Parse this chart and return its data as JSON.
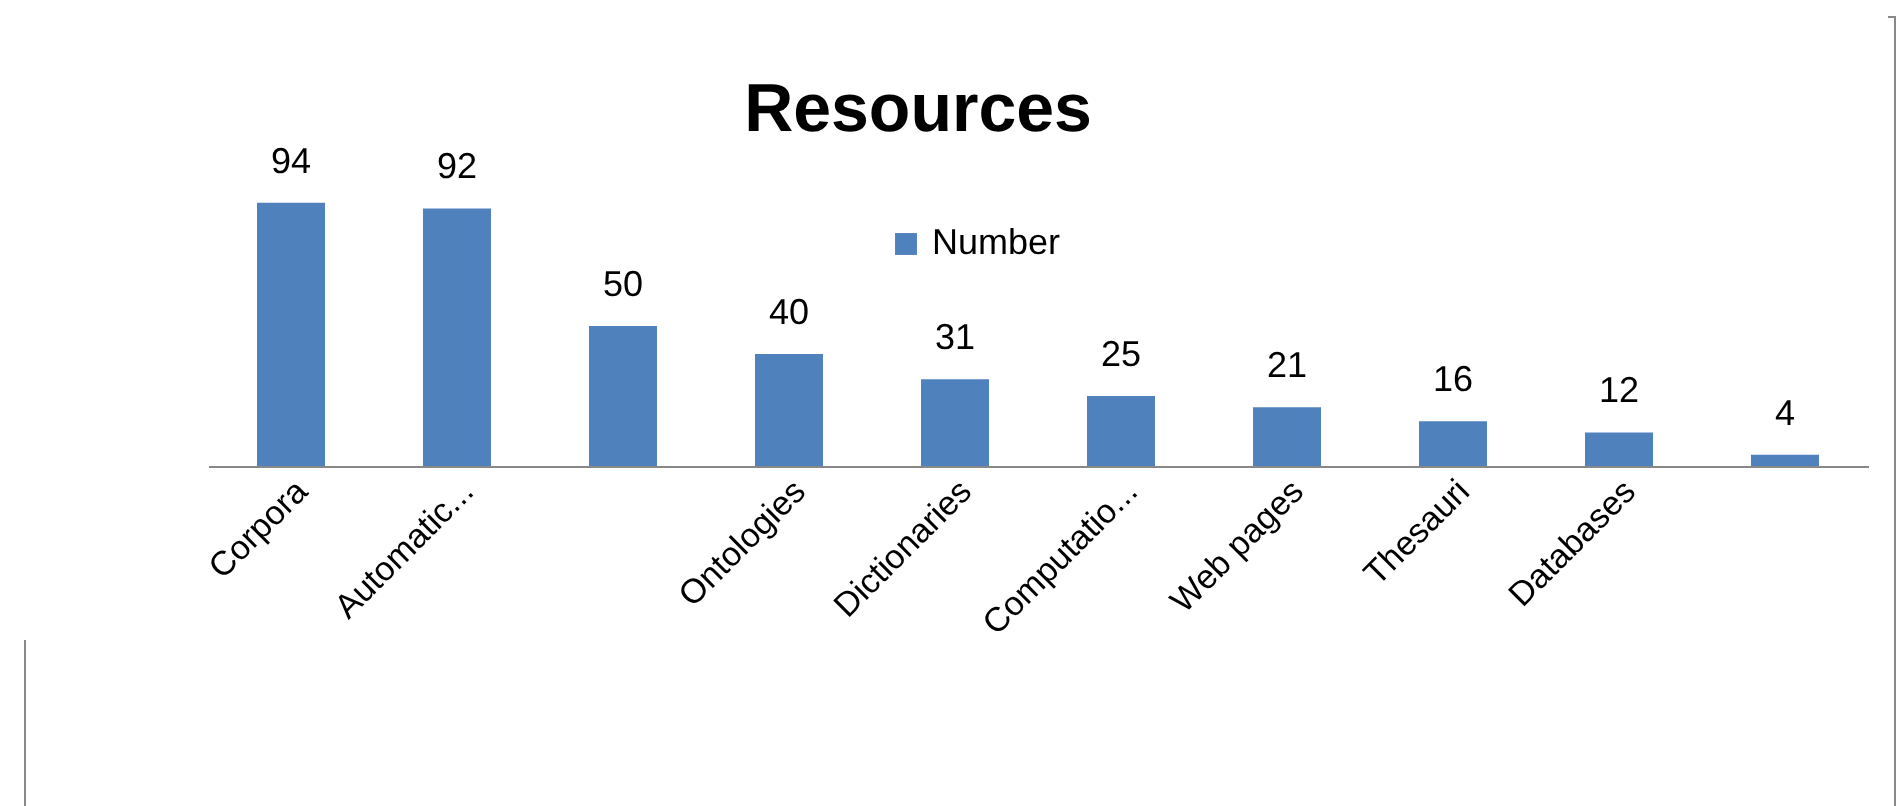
{
  "chart_data": {
    "type": "bar",
    "title": "Resources",
    "categories": [
      "Corpora",
      "Automatic...",
      null,
      "Ontologies",
      "Dictionaries",
      "Computatio...",
      "Web pages",
      "Thesauri",
      "Databases",
      null
    ],
    "series": [
      {
        "name": "Number",
        "color": "#4f81bd",
        "values": [
          94,
          92,
          50,
          40,
          31,
          25,
          21,
          16,
          12,
          4
        ]
      }
    ],
    "data_labels": true,
    "legend": "top"
  }
}
